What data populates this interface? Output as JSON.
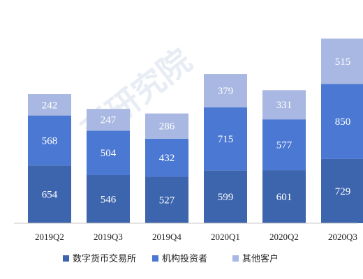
{
  "chart_data": {
    "type": "bar",
    "stacked": true,
    "categories": [
      "2019Q2",
      "2019Q3",
      "2019Q4",
      "2020Q1",
      "2020Q2",
      "2020Q3"
    ],
    "series": [
      {
        "name": "数字货币交易所",
        "color": "#3d65ad",
        "values": [
          654,
          546,
          527,
          599,
          601,
          729
        ]
      },
      {
        "name": "机构投资者",
        "color": "#4a78d2",
        "values": [
          568,
          504,
          432,
          715,
          577,
          850
        ]
      },
      {
        "name": "其他客户",
        "color": "#a9b8e2",
        "values": [
          242,
          247,
          286,
          379,
          331,
          515
        ]
      }
    ],
    "ylim": [
      0,
      2200
    ],
    "grid": false,
    "legend_position": "bottom",
    "watermark": "币研究院"
  }
}
